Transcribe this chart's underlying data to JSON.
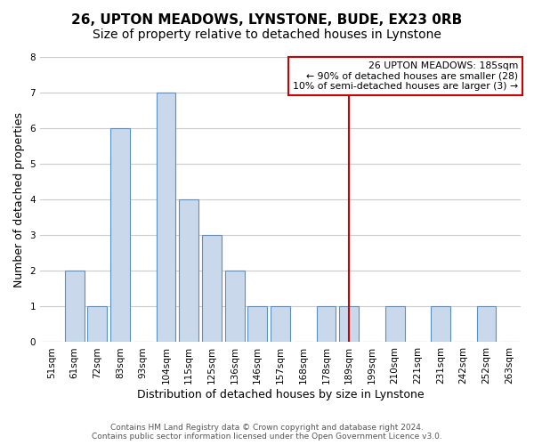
{
  "title": "26, UPTON MEADOWS, LYNSTONE, BUDE, EX23 0RB",
  "subtitle": "Size of property relative to detached houses in Lynstone",
  "xlabel": "Distribution of detached houses by size in Lynstone",
  "ylabel": "Number of detached properties",
  "bin_labels": [
    "51sqm",
    "61sqm",
    "72sqm",
    "83sqm",
    "93sqm",
    "104sqm",
    "115sqm",
    "125sqm",
    "136sqm",
    "146sqm",
    "157sqm",
    "168sqm",
    "178sqm",
    "189sqm",
    "199sqm",
    "210sqm",
    "221sqm",
    "231sqm",
    "242sqm",
    "252sqm",
    "263sqm"
  ],
  "bar_values": [
    0,
    2,
    1,
    6,
    0,
    7,
    4,
    3,
    2,
    1,
    1,
    0,
    1,
    1,
    0,
    1,
    0,
    1,
    0,
    1,
    0
  ],
  "bar_color": "#c9d9eb",
  "bar_edge_color": "#5a8fc3",
  "vline_x": 13,
  "vline_color": "#cc0000",
  "annotation_title": "26 UPTON MEADOWS: 185sqm",
  "annotation_line1": "← 90% of detached houses are smaller (28)",
  "annotation_line2": "10% of semi-detached houses are larger (3) →",
  "annotation_box_color": "#ffffff",
  "annotation_box_edge": "#cc0000",
  "ylim": [
    0,
    8
  ],
  "yticks": [
    0,
    1,
    2,
    3,
    4,
    5,
    6,
    7,
    8
  ],
  "footer_line1": "Contains HM Land Registry data © Crown copyright and database right 2024.",
  "footer_line2": "Contains public sector information licensed under the Open Government Licence v3.0.",
  "bg_color": "#ffffff",
  "grid_color": "#cccccc",
  "title_fontsize": 11,
  "subtitle_fontsize": 10,
  "axis_label_fontsize": 9,
  "tick_fontsize": 7.5,
  "footer_fontsize": 6.5
}
